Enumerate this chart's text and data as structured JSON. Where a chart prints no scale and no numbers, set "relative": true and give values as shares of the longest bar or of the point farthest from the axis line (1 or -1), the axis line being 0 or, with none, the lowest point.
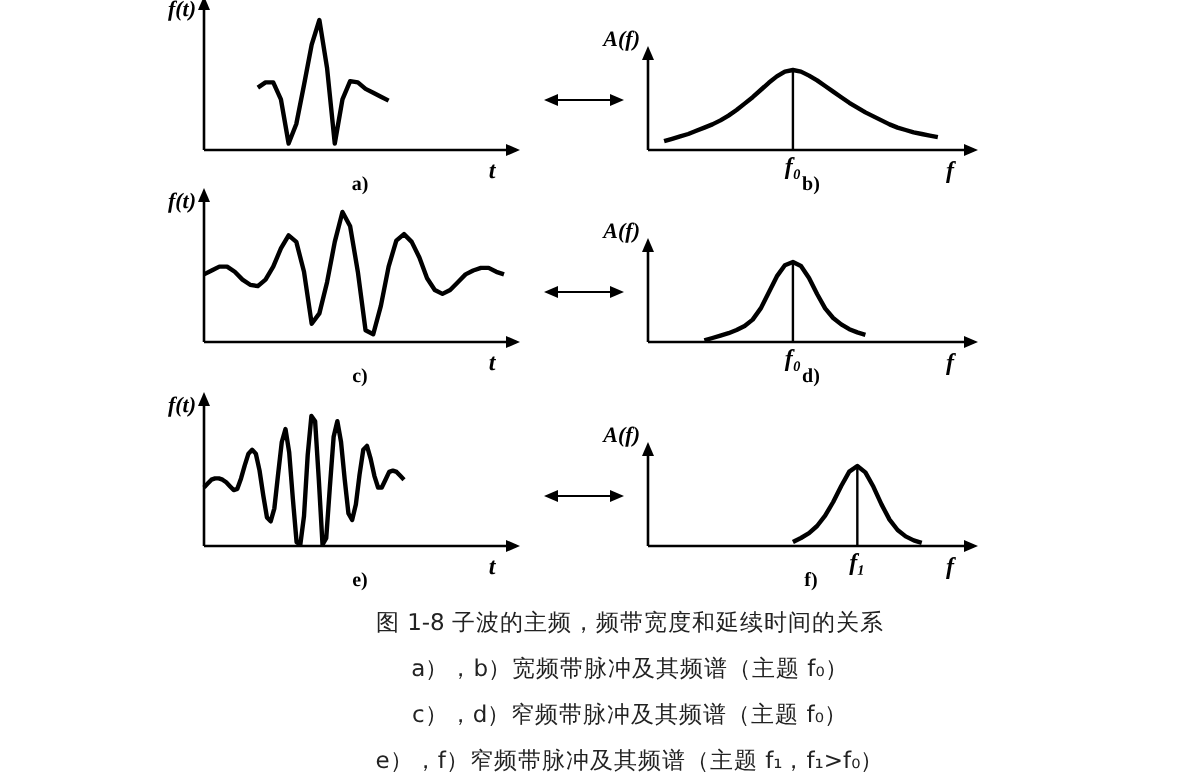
{
  "chart_data": [
    {
      "type": "line",
      "relative": true,
      "title": "a)",
      "xlabel": "t",
      "ylabel": "f(t)",
      "color": "#000000",
      "categories": [
        null,
        null,
        null,
        null,
        null,
        null,
        null,
        null,
        null,
        null,
        null,
        null,
        null,
        null,
        null,
        null,
        null,
        null,
        null,
        null,
        null,
        null,
        null,
        null,
        null,
        null,
        null,
        null,
        null,
        null,
        null,
        null,
        null,
        null,
        null,
        null,
        null,
        null,
        null,
        null
      ],
      "values": [
        null,
        null,
        null,
        null,
        null,
        null,
        null,
        0.48,
        0.52,
        0.52,
        0.39,
        0.05,
        0.2,
        0.5,
        0.81,
        1,
        0.63,
        0.05,
        0.39,
        0.53,
        0.52,
        0.47,
        0.44,
        0.41,
        0.38,
        null,
        null,
        null,
        null,
        null,
        null,
        null,
        null,
        null,
        null,
        null,
        null,
        null,
        null,
        null
      ]
    },
    {
      "type": "line",
      "relative": true,
      "title": "b)",
      "xlabel": "f",
      "ylabel": "A(f)",
      "color": "#000000",
      "ref_lines": [
        {
          "axis": "x",
          "label": "f₀"
        }
      ],
      "categories": [
        null,
        null,
        null,
        null,
        null,
        null,
        null,
        null,
        null,
        null,
        null,
        null,
        null,
        null,
        null,
        null,
        null,
        null,
        null,
        null,
        null,
        null,
        null,
        null,
        null,
        null,
        null,
        null,
        null,
        null,
        null,
        null,
        null,
        null,
        null,
        null,
        null,
        null,
        null,
        null
      ],
      "values": [
        null,
        null,
        0.11,
        0.14,
        0.17,
        0.2,
        0.24,
        0.28,
        0.32,
        0.37,
        0.43,
        0.5,
        0.58,
        0.66,
        0.75,
        0.84,
        0.92,
        0.98,
        1,
        0.98,
        0.93,
        0.87,
        0.8,
        0.73,
        0.66,
        0.59,
        0.53,
        0.47,
        0.42,
        0.37,
        0.32,
        0.28,
        0.25,
        0.22,
        0.2,
        0.18,
        0.16,
        null,
        null,
        null
      ]
    },
    {
      "type": "line",
      "relative": true,
      "title": "c)",
      "xlabel": "t",
      "ylabel": "f(t)",
      "color": "#000000",
      "categories": [
        null,
        null,
        null,
        null,
        null,
        null,
        null,
        null,
        null,
        null,
        null,
        null,
        null,
        null,
        null,
        null,
        null,
        null,
        null,
        null,
        null,
        null,
        null,
        null,
        null,
        null,
        null,
        null,
        null,
        null,
        null,
        null,
        null,
        null,
        null,
        null,
        null,
        null,
        null,
        null
      ],
      "values": [
        0.52,
        0.55,
        0.58,
        0.58,
        0.54,
        0.48,
        0.44,
        0.43,
        0.48,
        0.58,
        0.72,
        0.82,
        0.77,
        0.54,
        0.14,
        0.22,
        0.46,
        0.77,
        1,
        0.89,
        0.54,
        0.09,
        0.06,
        0.28,
        0.58,
        0.78,
        0.83,
        0.77,
        0.65,
        0.49,
        0.4,
        0.37,
        0.4,
        0.46,
        0.52,
        0.55,
        0.57,
        0.57,
        0.54,
        0.52
      ]
    },
    {
      "type": "line",
      "relative": true,
      "title": "d)",
      "xlabel": "f",
      "ylabel": "A(f)",
      "color": "#000000",
      "ref_lines": [
        {
          "axis": "x",
          "label": "f₀"
        }
      ],
      "categories": [
        null,
        null,
        null,
        null,
        null,
        null,
        null,
        null,
        null,
        null,
        null,
        null,
        null,
        null,
        null,
        null,
        null,
        null,
        null,
        null,
        null,
        null,
        null,
        null,
        null,
        null,
        null,
        null,
        null,
        null,
        null,
        null,
        null,
        null,
        null,
        null,
        null,
        null,
        null,
        null
      ],
      "values": [
        null,
        null,
        null,
        null,
        null,
        null,
        null,
        0.02,
        0.05,
        0.08,
        0.11,
        0.15,
        0.2,
        0.28,
        0.42,
        0.62,
        0.82,
        0.96,
        1,
        0.95,
        0.8,
        0.6,
        0.42,
        0.3,
        0.22,
        0.16,
        0.12,
        0.09,
        null,
        null,
        null,
        null,
        null,
        null,
        null,
        null,
        null,
        null,
        null,
        null
      ]
    },
    {
      "type": "line",
      "relative": true,
      "title": "e)",
      "xlabel": "t",
      "ylabel": "f(t)",
      "color": "#000000",
      "categories": [
        null,
        null,
        null,
        null,
        null,
        null,
        null,
        null,
        null,
        null,
        null,
        null,
        null,
        null,
        null,
        null,
        null,
        null,
        null,
        null,
        null,
        null,
        null,
        null,
        null,
        null,
        null,
        null,
        null,
        null,
        null,
        null,
        null,
        null,
        null,
        null,
        null,
        null,
        null,
        null,
        null,
        null,
        null,
        null,
        null,
        null,
        null,
        null,
        null,
        null,
        null,
        null,
        null,
        null,
        null,
        null,
        null,
        null,
        null,
        null,
        null,
        null,
        null,
        null,
        null,
        null,
        null,
        null,
        null,
        null,
        null,
        null,
        null,
        null,
        null,
        null,
        null,
        null,
        null,
        null,
        null,
        null
      ],
      "values": [
        0.45,
        0.48,
        0.51,
        0.52,
        0.52,
        0.51,
        0.49,
        0.46,
        0.43,
        0.44,
        0.52,
        0.62,
        0.71,
        0.74,
        0.71,
        0.58,
        0.39,
        0.22,
        0.19,
        0.29,
        0.55,
        0.8,
        0.9,
        0.72,
        0.36,
        0.03,
        0.01,
        0.23,
        0.7,
        1,
        0.96,
        0.51,
        0.01,
        0.06,
        0.46,
        0.84,
        0.96,
        0.8,
        0.51,
        0.25,
        0.2,
        0.32,
        0.55,
        0.74,
        0.77,
        0.67,
        0.54,
        0.45,
        0.45,
        0.51,
        0.57,
        0.58,
        0.57,
        0.54,
        0.51,
        null,
        null,
        null,
        null,
        null,
        null,
        null,
        null,
        null,
        null,
        null,
        null,
        null,
        null,
        null,
        null,
        null,
        null,
        null,
        null,
        null,
        null,
        null,
        null,
        null,
        null,
        null
      ]
    },
    {
      "type": "line",
      "relative": true,
      "title": "f)",
      "xlabel": "f",
      "ylabel": "A(f)",
      "color": "#000000",
      "ref_lines": [
        {
          "axis": "x",
          "label": "f₁"
        }
      ],
      "categories": [
        null,
        null,
        null,
        null,
        null,
        null,
        null,
        null,
        null,
        null,
        null,
        null,
        null,
        null,
        null,
        null,
        null,
        null,
        null,
        null,
        null,
        null,
        null,
        null,
        null,
        null,
        null,
        null,
        null,
        null,
        null,
        null,
        null,
        null,
        null,
        null,
        null,
        null,
        null,
        null
      ],
      "values": [
        null,
        null,
        null,
        null,
        null,
        null,
        null,
        null,
        null,
        null,
        null,
        null,
        null,
        null,
        null,
        null,
        null,
        null,
        0.05,
        0.1,
        0.16,
        0.25,
        0.38,
        0.55,
        0.75,
        0.93,
        1,
        0.92,
        0.74,
        0.52,
        0.33,
        0.2,
        0.12,
        0.07,
        0.04,
        null,
        null,
        null,
        null,
        null
      ]
    },
    {
      "type": "other",
      "title": "图 1-8 子波的主频，频带宽度和延续时间的关系",
      "annotations": [
        "a），b）宽频带脉冲及其频谱（主题 f₀）",
        "c），d）窄频带脉冲及其频谱（主题 f₀）",
        "e），f）窄频带脉冲及其频谱（主题 f₁，f₁>f₀）"
      ]
    }
  ]
}
